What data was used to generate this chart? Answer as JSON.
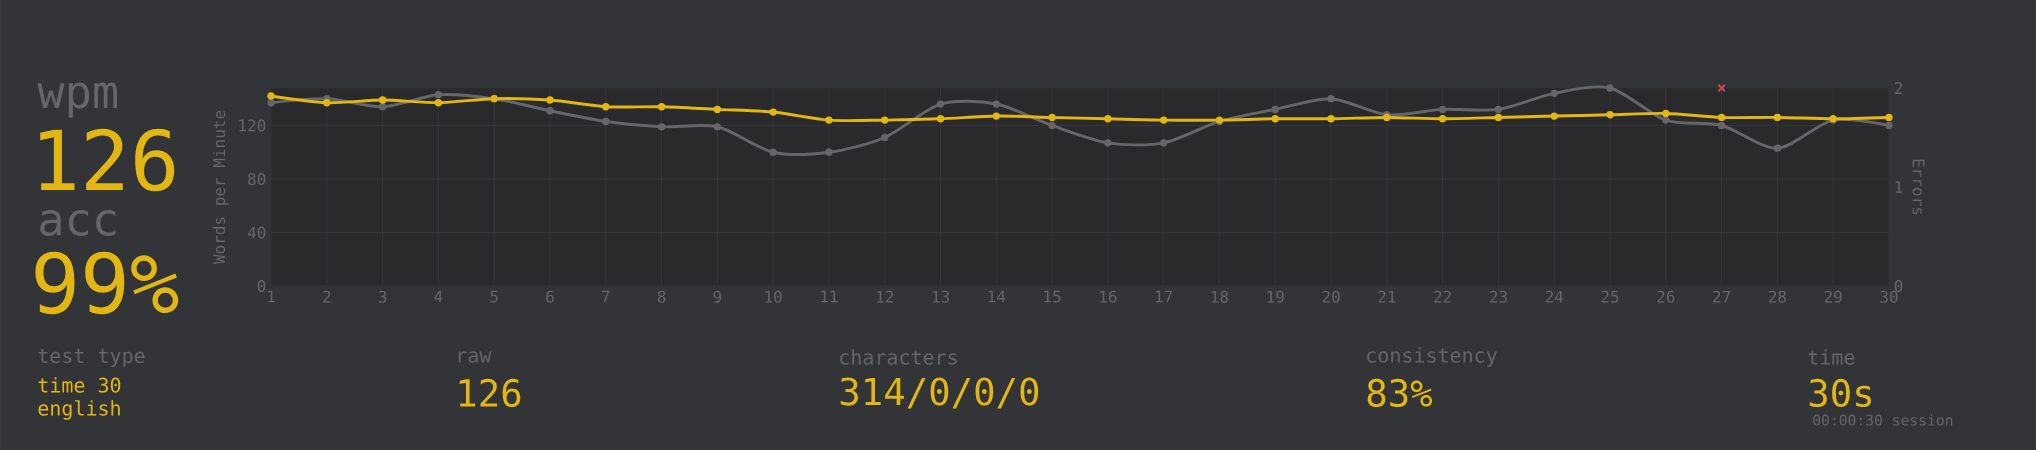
{
  "chart_data": {
    "type": "line",
    "x": [
      1,
      2,
      3,
      4,
      5,
      6,
      7,
      8,
      9,
      10,
      11,
      12,
      13,
      14,
      15,
      16,
      17,
      18,
      19,
      20,
      21,
      22,
      23,
      24,
      25,
      26,
      27,
      28,
      29,
      30
    ],
    "series": [
      {
        "color": "#646669",
        "values": [
          137,
          140,
          134,
          143,
          140,
          131,
          123,
          119,
          119,
          100,
          100,
          111,
          136,
          136,
          120,
          107,
          107,
          123,
          132,
          140,
          128,
          132,
          132,
          144,
          148,
          124,
          120,
          103,
          124,
          120
        ]
      },
      {
        "color": "#e2b714",
        "values": [
          142,
          137,
          139,
          137,
          140,
          139,
          134,
          134,
          132,
          130,
          124,
          124,
          125,
          127,
          126,
          125,
          124,
          124,
          125,
          125,
          126,
          125,
          126,
          127,
          128,
          129,
          126,
          126,
          125,
          126
        ]
      },
      {
        "type": "scatter",
        "axis": "y2",
        "marker": "cross",
        "color": "#ca4754",
        "values": [
          null,
          null,
          null,
          null,
          null,
          null,
          null,
          null,
          null,
          null,
          null,
          null,
          null,
          null,
          null,
          null,
          null,
          null,
          null,
          null,
          null,
          null,
          null,
          null,
          null,
          null,
          2,
          null,
          null,
          null
        ]
      }
    ],
    "xlim": [
      1,
      30
    ],
    "xticks": [
      1,
      2,
      3,
      4,
      5,
      6,
      7,
      8,
      9,
      10,
      11,
      12,
      13,
      14,
      15,
      16,
      17,
      18,
      19,
      20,
      21,
      22,
      23,
      24,
      25,
      26,
      27,
      28,
      29,
      30
    ],
    "ylim": [
      0,
      148
    ],
    "yticks": [
      0,
      40,
      80,
      120
    ],
    "y2lim": [
      0,
      2
    ],
    "y2ticks": [
      0,
      1,
      2
    ],
    "ylabel": "Words per Minute",
    "y2label": "Errors",
    "grid": true,
    "marker": "circle",
    "line_style": "solid",
    "annotations": [
      "wpm",
      "126",
      "acc",
      "99%",
      "test type",
      "time 30",
      "english",
      "raw",
      "126",
      "characters",
      "314/0/0/0",
      "consistency",
      "83%",
      "time",
      "30s",
      "00:00:30 session"
    ]
  }
}
